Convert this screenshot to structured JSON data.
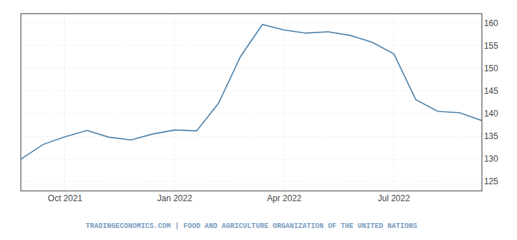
{
  "chart_data": {
    "type": "line",
    "categories": [
      null,
      null,
      "Oct 2021",
      null,
      null,
      null,
      null,
      "Jan 2022",
      null,
      null,
      null,
      null,
      "Apr 2022",
      null,
      null,
      null,
      null,
      "Jul 2022",
      null,
      null,
      null,
      null
    ],
    "values": [
      130.0,
      133.2,
      134.9,
      136.3,
      134.8,
      134.2,
      135.5,
      136.4,
      136.2,
      142.3,
      152.6,
      159.7,
      158.5,
      157.8,
      158.1,
      157.3,
      155.8,
      153.2,
      143.1,
      140.5,
      140.2,
      138.5
    ],
    "color": "#4a7fa8",
    "ylim": [
      123,
      162
    ],
    "yticks": [
      125,
      130,
      135,
      140,
      145,
      150,
      155,
      160
    ],
    "grid": true,
    "annotations": [
      "TRADINGECONOMICS.COM | FOOD AND AGRICULTURE ORGANIZATION OF THE UNITED NATIONS"
    ]
  }
}
